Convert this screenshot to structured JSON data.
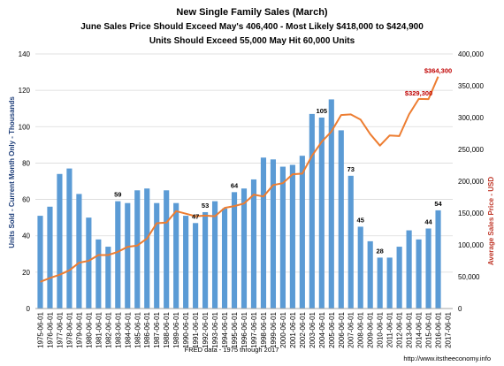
{
  "titles": {
    "line1": "New Single Family Sales (March)",
    "line2": "June Sales Price Should Exceed  May's 406,400 - Most Likely $418,000 to $424,900",
    "line3": "Units Should Exceed  55,000 May Hit 60,000 Units"
  },
  "footer": {
    "source": "FRED data - 1975 through 2017",
    "credit": "http://www.itstheeconomy.info"
  },
  "colors": {
    "bar": "#5b9bd5",
    "line": "#ed7d31",
    "left_axis_title": "#1f3f7a",
    "right_axis_title": "#c0392b",
    "price_label": "#c00000",
    "grid": "#d9d9d9"
  },
  "chart_data": {
    "type": "bar",
    "title": "New Single Family Sales (March)",
    "xlabel": "FRED data - 1975 through 2017",
    "ylabel": "Units Sold - Current Month Only - Thousands",
    "y2label": "Average Sales Price - USD",
    "ylim": [
      0,
      140
    ],
    "y_ticks": [
      "0",
      "20",
      "40",
      "60",
      "80",
      "100",
      "120",
      "140"
    ],
    "y2lim": [
      0,
      400000
    ],
    "y2_ticks": [
      "0",
      "50,000",
      "100,000",
      "150,000",
      "200,000",
      "250,000",
      "300,000",
      "350,000",
      "400,000"
    ],
    "grid": true,
    "categories": [
      "1975-06-01",
      "1976-06-01",
      "1977-06-01",
      "1978-06-01",
      "1979-06-01",
      "1980-06-01",
      "1981-06-01",
      "1982-06-01",
      "1983-06-01",
      "1984-06-01",
      "1985-06-01",
      "1986-06-01",
      "1987-06-01",
      "1988-06-01",
      "1989-06-01",
      "1990-06-01",
      "1991-06-01",
      "1992-06-01",
      "1993-06-01",
      "1994-06-01",
      "1995-06-01",
      "1996-06-01",
      "1997-06-01",
      "1998-06-01",
      "1999-06-01",
      "2000-06-01",
      "2001-06-01",
      "2002-06-01",
      "2003-06-01",
      "2004-06-01",
      "2005-06-01",
      "2006-06-01",
      "2007-06-01",
      "2008-06-01",
      "2009-06-01",
      "2010-06-01",
      "2011-06-01",
      "2012-06-01",
      "2013-06-01",
      "2014-06-01",
      "2015-06-01",
      "2016-06-01",
      "2017-06-01"
    ],
    "series": [
      {
        "type": "bar",
        "axis": "left",
        "values": [
          51,
          56,
          74,
          77,
          63,
          50,
          38,
          34,
          59,
          58,
          65,
          66,
          58,
          65,
          58,
          51,
          47,
          53,
          59,
          55,
          64,
          66,
          71,
          83,
          82,
          78,
          79,
          84,
          107,
          105,
          115,
          98,
          73,
          45,
          37,
          28,
          28,
          34,
          43,
          38,
          44,
          54,
          null
        ]
      },
      {
        "type": "line",
        "axis": "right",
        "values": [
          42000,
          48000,
          53000,
          60000,
          72000,
          75000,
          84000,
          84000,
          89000,
          97000,
          99000,
          110000,
          134000,
          135000,
          153000,
          149000,
          145000,
          146000,
          145000,
          158000,
          161000,
          165000,
          179000,
          176000,
          194000,
          197000,
          211000,
          212000,
          240000,
          262000,
          278000,
          304000,
          305000,
          297000,
          274000,
          256000,
          272000,
          271000,
          305000,
          329300,
          329000,
          364300,
          null
        ]
      }
    ],
    "data_labels": {
      "bars": [
        {
          "category": "1983-06-01",
          "text": "59"
        },
        {
          "category": "1991-06-01",
          "text": "47"
        },
        {
          "category": "1992-06-01",
          "text": "53"
        },
        {
          "category": "1995-06-01",
          "text": "64"
        },
        {
          "category": "2004-06-01",
          "text": "105"
        },
        {
          "category": "2007-06-01",
          "text": "73"
        },
        {
          "category": "2008-06-01",
          "text": "45"
        },
        {
          "category": "2010-06-01",
          "text": "28"
        },
        {
          "category": "2015-06-01",
          "text": "44"
        },
        {
          "category": "2016-06-01",
          "text": "54"
        }
      ],
      "line": [
        {
          "category": "2014-06-01",
          "text": "$329,300"
        },
        {
          "category": "2016-06-01",
          "text": "$364,300"
        }
      ]
    }
  }
}
